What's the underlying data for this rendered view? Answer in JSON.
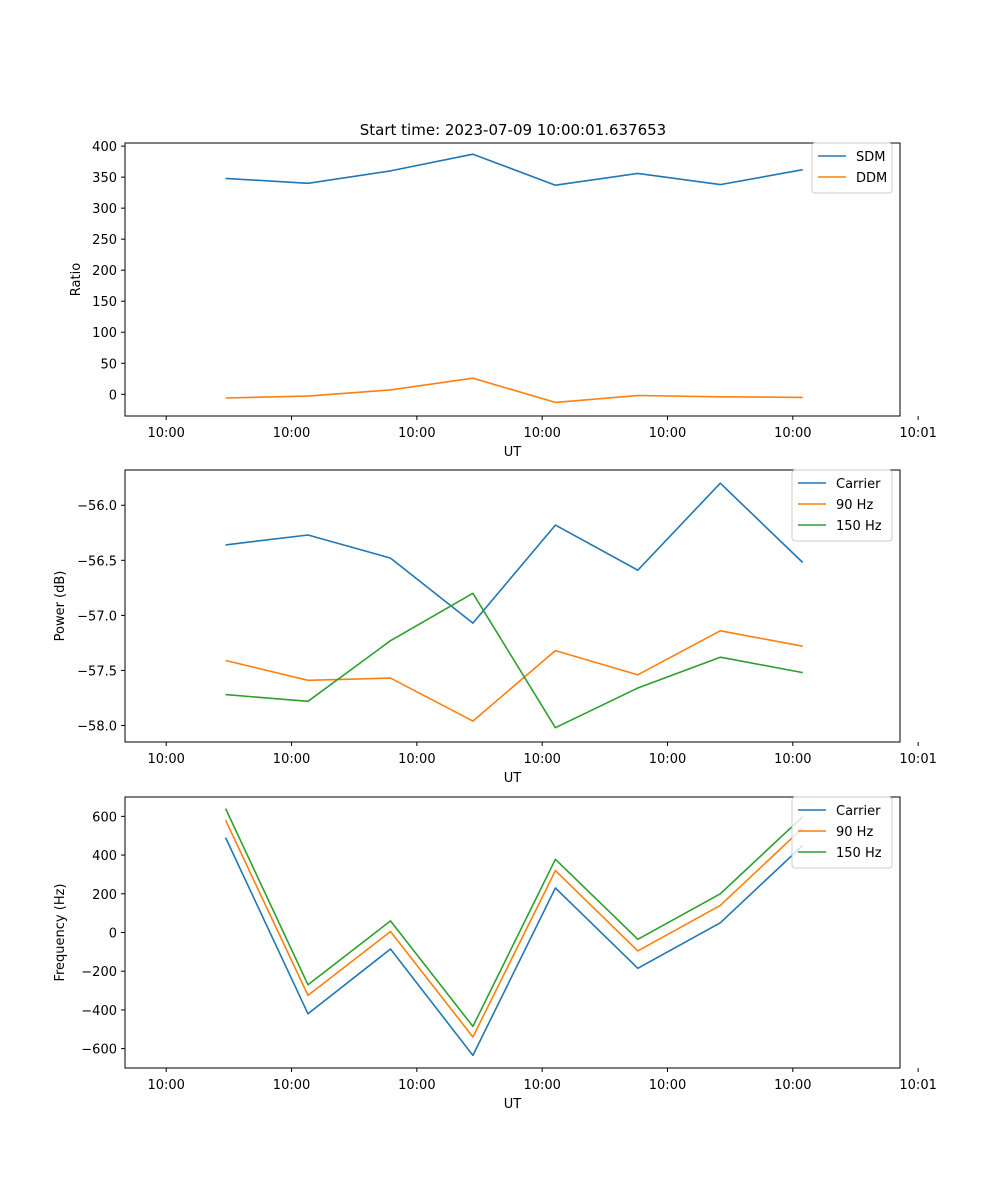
{
  "chart_data": [
    {
      "type": "line",
      "title": "Start time: 2023-07-09 10:00:01.637653",
      "xlabel": "UT",
      "ylabel": "Ratio",
      "xlim": [
        -0.5,
        8.9
      ],
      "ylim": [
        -35,
        405
      ],
      "xticks": [
        {
          "pos": 0,
          "label": "10:00"
        },
        {
          "pos": 1.52,
          "label": "10:00"
        },
        {
          "pos": 3.04,
          "label": "10:00"
        },
        {
          "pos": 4.56,
          "label": "10:00"
        },
        {
          "pos": 6.08,
          "label": "10:00"
        },
        {
          "pos": 7.6,
          "label": "10:00"
        },
        {
          "pos": 9.12,
          "label": "10:01"
        }
      ],
      "yticks": [
        0,
        50,
        100,
        150,
        200,
        250,
        300,
        350,
        400
      ],
      "x": [
        0.72,
        1.72,
        2.72,
        3.72,
        4.72,
        5.72,
        6.72,
        7.72
      ],
      "legend_loc": "upper right",
      "series": [
        {
          "name": "SDM",
          "color": "#1f77b4",
          "values": [
            348,
            340,
            360,
            387,
            337,
            356,
            338,
            362
          ]
        },
        {
          "name": "DDM",
          "color": "#ff7f0e",
          "values": [
            -6,
            -3,
            7,
            26,
            -13,
            -2,
            -4,
            -5
          ]
        }
      ]
    },
    {
      "type": "line",
      "title": "",
      "xlabel": "UT",
      "ylabel": "Power (dB)",
      "xlim": [
        -0.5,
        8.9
      ],
      "ylim": [
        -58.15,
        -55.68
      ],
      "xticks": [
        {
          "pos": 0,
          "label": "10:00"
        },
        {
          "pos": 1.52,
          "label": "10:00"
        },
        {
          "pos": 3.04,
          "label": "10:00"
        },
        {
          "pos": 4.56,
          "label": "10:00"
        },
        {
          "pos": 6.08,
          "label": "10:00"
        },
        {
          "pos": 7.6,
          "label": "10:00"
        },
        {
          "pos": 9.12,
          "label": "10:01"
        }
      ],
      "yticks": [
        -58.0,
        -57.5,
        -57.0,
        -56.5,
        -56.0
      ],
      "ytick_labels": [
        "−58.0",
        "−57.5",
        "−57.0",
        "−56.5",
        "−56.0"
      ],
      "x": [
        0.72,
        1.72,
        2.72,
        3.72,
        4.72,
        5.72,
        6.72,
        7.72
      ],
      "legend_loc": "upper right",
      "series": [
        {
          "name": "Carrier",
          "color": "#1f77b4",
          "values": [
            -56.36,
            -56.27,
            -56.48,
            -57.07,
            -56.18,
            -56.59,
            -55.8,
            -56.52
          ]
        },
        {
          "name": "90 Hz",
          "color": "#ff7f0e",
          "values": [
            -57.41,
            -57.59,
            -57.57,
            -57.96,
            -57.32,
            -57.54,
            -57.14,
            -57.28
          ]
        },
        {
          "name": "150 Hz",
          "color": "#2ca02c",
          "values": [
            -57.72,
            -57.78,
            -57.23,
            -56.8,
            -58.02,
            -57.66,
            -57.38,
            -57.52
          ]
        }
      ]
    },
    {
      "type": "line",
      "title": "",
      "xlabel": "UT",
      "ylabel": "Frequency (Hz)",
      "xlim": [
        -0.5,
        8.9
      ],
      "ylim": [
        -700,
        700
      ],
      "xticks": [
        {
          "pos": 0,
          "label": "10:00"
        },
        {
          "pos": 1.52,
          "label": "10:00"
        },
        {
          "pos": 3.04,
          "label": "10:00"
        },
        {
          "pos": 4.56,
          "label": "10:00"
        },
        {
          "pos": 6.08,
          "label": "10:00"
        },
        {
          "pos": 7.6,
          "label": "10:00"
        },
        {
          "pos": 9.12,
          "label": "10:01"
        }
      ],
      "yticks": [
        -600,
        -400,
        -200,
        0,
        200,
        400,
        600
      ],
      "ytick_labels": [
        "−600",
        "−400",
        "−200",
        "0",
        "200",
        "400",
        "600"
      ],
      "x": [
        0.72,
        1.72,
        2.72,
        3.72,
        4.72,
        5.72,
        6.72,
        7.72
      ],
      "legend_loc": "upper right",
      "series": [
        {
          "name": "Carrier",
          "color": "#1f77b4",
          "values": [
            490,
            -420,
            -85,
            -635,
            230,
            -185,
            50,
            450
          ]
        },
        {
          "name": "90 Hz",
          "color": "#ff7f0e",
          "values": [
            580,
            -325,
            5,
            -540,
            320,
            -95,
            140,
            540
          ]
        },
        {
          "name": "150 Hz",
          "color": "#2ca02c",
          "values": [
            640,
            -270,
            60,
            -485,
            378,
            -35,
            200,
            598
          ]
        }
      ]
    }
  ]
}
